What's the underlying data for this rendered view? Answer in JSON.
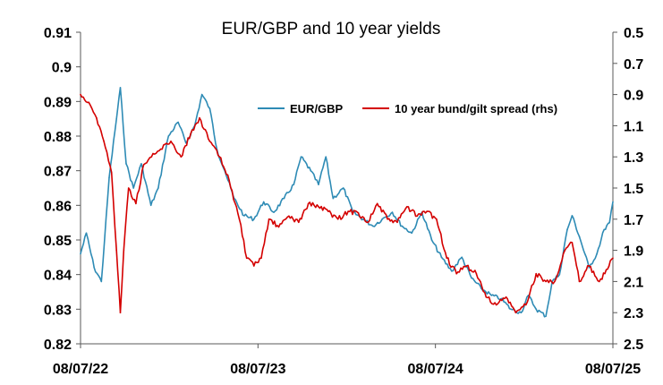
{
  "chart_data": {
    "type": "line",
    "title": "EUR/GBP and 10 year yields",
    "left_axis": {
      "ylim": [
        0.82,
        0.91
      ],
      "ticks": [
        "0.82",
        "0.83",
        "0.84",
        "0.85",
        "0.86",
        "0.87",
        "0.88",
        "0.89",
        "0.9",
        "0.91"
      ]
    },
    "right_axis": {
      "ylim": [
        2.5,
        0.5
      ],
      "inverted": true,
      "ticks": [
        "0.5",
        "0.7",
        "0.9",
        "1.1",
        "1.3",
        "1.5",
        "1.7",
        "1.9",
        "2.1",
        "2.3",
        "2.5"
      ]
    },
    "x_axis": {
      "start": "2022-07-08",
      "end": "2025-07-08",
      "tick_labels": [
        "08/07/22",
        "08/07/23",
        "08/07/24",
        "08/07/25"
      ]
    },
    "legend_position": "top-center",
    "series": [
      {
        "name": "EUR/GBP",
        "axis": "left",
        "color": "#2e8bb5",
        "x": [
          "2022-07-08",
          "2022-07-20",
          "2022-08-05",
          "2022-08-20",
          "2022-09-05",
          "2022-09-20",
          "2022-09-28",
          "2022-10-10",
          "2022-10-25",
          "2022-11-10",
          "2022-11-30",
          "2022-12-15",
          "2023-01-05",
          "2023-01-25",
          "2023-02-10",
          "2023-02-28",
          "2023-03-15",
          "2023-03-31",
          "2023-04-15",
          "2023-05-01",
          "2023-05-20",
          "2023-06-10",
          "2023-06-30",
          "2023-07-20",
          "2023-08-10",
          "2023-08-31",
          "2023-09-20",
          "2023-10-05",
          "2023-10-25",
          "2023-11-10",
          "2023-11-25",
          "2023-12-10",
          "2023-12-31",
          "2024-01-20",
          "2024-02-10",
          "2024-03-01",
          "2024-03-20",
          "2024-04-10",
          "2024-04-30",
          "2024-05-20",
          "2024-06-10",
          "2024-06-30",
          "2024-07-20",
          "2024-08-10",
          "2024-08-31",
          "2024-09-20",
          "2024-10-10",
          "2024-10-31",
          "2024-11-20",
          "2024-12-10",
          "2024-12-31",
          "2025-01-15",
          "2025-01-31",
          "2025-02-20",
          "2025-03-05",
          "2025-03-20",
          "2025-04-05",
          "2025-04-15",
          "2025-04-30",
          "2025-05-20",
          "2025-06-05",
          "2025-06-20",
          "2025-07-01",
          "2025-07-08"
        ],
        "values": [
          0.846,
          0.852,
          0.842,
          0.838,
          0.868,
          0.885,
          0.894,
          0.872,
          0.865,
          0.872,
          0.86,
          0.865,
          0.88,
          0.884,
          0.878,
          0.883,
          0.892,
          0.888,
          0.876,
          0.87,
          0.862,
          0.857,
          0.856,
          0.861,
          0.858,
          0.862,
          0.866,
          0.874,
          0.87,
          0.866,
          0.874,
          0.862,
          0.865,
          0.858,
          0.856,
          0.854,
          0.856,
          0.858,
          0.854,
          0.852,
          0.858,
          0.85,
          0.845,
          0.841,
          0.845,
          0.839,
          0.836,
          0.834,
          0.833,
          0.83,
          0.829,
          0.834,
          0.83,
          0.828,
          0.838,
          0.84,
          0.853,
          0.857,
          0.851,
          0.842,
          0.846,
          0.853,
          0.855,
          0.861
        ]
      },
      {
        "name": "10 year bund/gilt spread (rhs)",
        "axis": "right",
        "color": "#d40000",
        "x": [
          "2022-07-08",
          "2022-07-25",
          "2022-08-10",
          "2022-08-25",
          "2022-09-10",
          "2022-09-20",
          "2022-09-28",
          "2022-10-05",
          "2022-10-15",
          "2022-10-30",
          "2022-11-15",
          "2022-12-01",
          "2022-12-20",
          "2023-01-10",
          "2023-01-31",
          "2023-02-20",
          "2023-03-10",
          "2023-03-31",
          "2023-04-20",
          "2023-05-10",
          "2023-05-31",
          "2023-06-15",
          "2023-06-30",
          "2023-07-15",
          "2023-07-31",
          "2023-08-20",
          "2023-09-10",
          "2023-09-30",
          "2023-10-20",
          "2023-11-10",
          "2023-11-30",
          "2023-12-20",
          "2024-01-10",
          "2024-01-31",
          "2024-02-20",
          "2024-03-10",
          "2024-03-31",
          "2024-04-20",
          "2024-05-10",
          "2024-05-31",
          "2024-06-20",
          "2024-07-10",
          "2024-07-31",
          "2024-08-20",
          "2024-09-10",
          "2024-09-30",
          "2024-10-20",
          "2024-11-10",
          "2024-11-30",
          "2024-12-20",
          "2025-01-10",
          "2025-01-31",
          "2025-02-20",
          "2025-03-10",
          "2025-03-31",
          "2025-04-15",
          "2025-04-30",
          "2025-05-20",
          "2025-06-10",
          "2025-06-30",
          "2025-07-08"
        ],
        "values": [
          0.9,
          0.95,
          1.05,
          1.2,
          1.4,
          1.9,
          2.3,
          1.9,
          1.5,
          1.6,
          1.35,
          1.3,
          1.25,
          1.2,
          1.3,
          1.15,
          1.05,
          1.2,
          1.3,
          1.45,
          1.7,
          1.95,
          2.0,
          1.95,
          1.7,
          1.75,
          1.68,
          1.72,
          1.6,
          1.62,
          1.65,
          1.7,
          1.65,
          1.66,
          1.72,
          1.6,
          1.7,
          1.72,
          1.62,
          1.68,
          1.65,
          1.7,
          1.95,
          2.05,
          2.0,
          2.05,
          2.2,
          2.25,
          2.2,
          2.3,
          2.25,
          2.05,
          2.1,
          2.1,
          1.9,
          1.85,
          2.1,
          2.0,
          2.1,
          2.0,
          1.95
        ]
      }
    ]
  }
}
